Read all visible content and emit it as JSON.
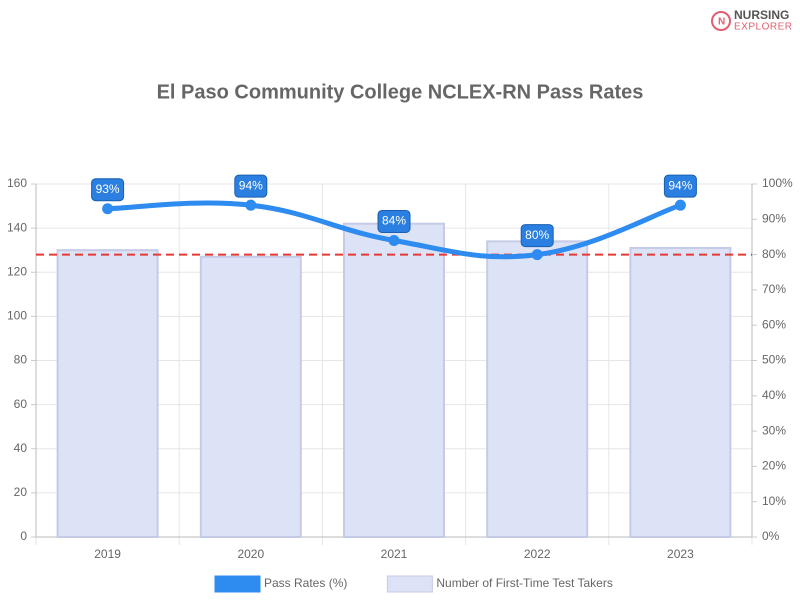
{
  "logo": [
    "NURSING",
    "EXPLORER"
  ],
  "chart_data": {
    "type": "combo",
    "title": "El Paso Community College NCLEX-RN Pass Rates",
    "categories": [
      "2019",
      "2020",
      "2021",
      "2022",
      "2023"
    ],
    "series": [
      {
        "name": "Pass Rates (%)",
        "type": "line",
        "axis": "y2",
        "color": "#2e8bef",
        "values": [
          93,
          94,
          84,
          80,
          94
        ],
        "value_labels": [
          "93%",
          "94%",
          "84%",
          "80%",
          "94%"
        ]
      },
      {
        "name": "Number of First-Time Test Takers",
        "type": "bar",
        "color": "#dde3f7",
        "values": [
          130,
          127,
          142,
          134,
          131
        ]
      }
    ],
    "ylim": [
      0,
      160
    ],
    "yticks": [
      0,
      20,
      40,
      60,
      80,
      100,
      120,
      140,
      160
    ],
    "y2lim": [
      0,
      100
    ],
    "y2ticks": [
      {
        "value": 0,
        "label": "0%"
      },
      {
        "value": 10,
        "label": "10%"
      },
      {
        "value": 20,
        "label": "20%"
      },
      {
        "value": 30,
        "label": "30%"
      },
      {
        "value": 40,
        "label": "40%"
      },
      {
        "value": 50,
        "label": "50%"
      },
      {
        "value": 60,
        "label": "60%"
      },
      {
        "value": 70,
        "label": "70%"
      },
      {
        "value": 80,
        "label": "80%"
      },
      {
        "value": 90,
        "label": "90%"
      },
      {
        "value": 100,
        "label": "100%"
      }
    ],
    "reference_line": {
      "value": 80,
      "axis": "y2",
      "color": "#e53935"
    },
    "grid": true,
    "legend": "bottom"
  }
}
